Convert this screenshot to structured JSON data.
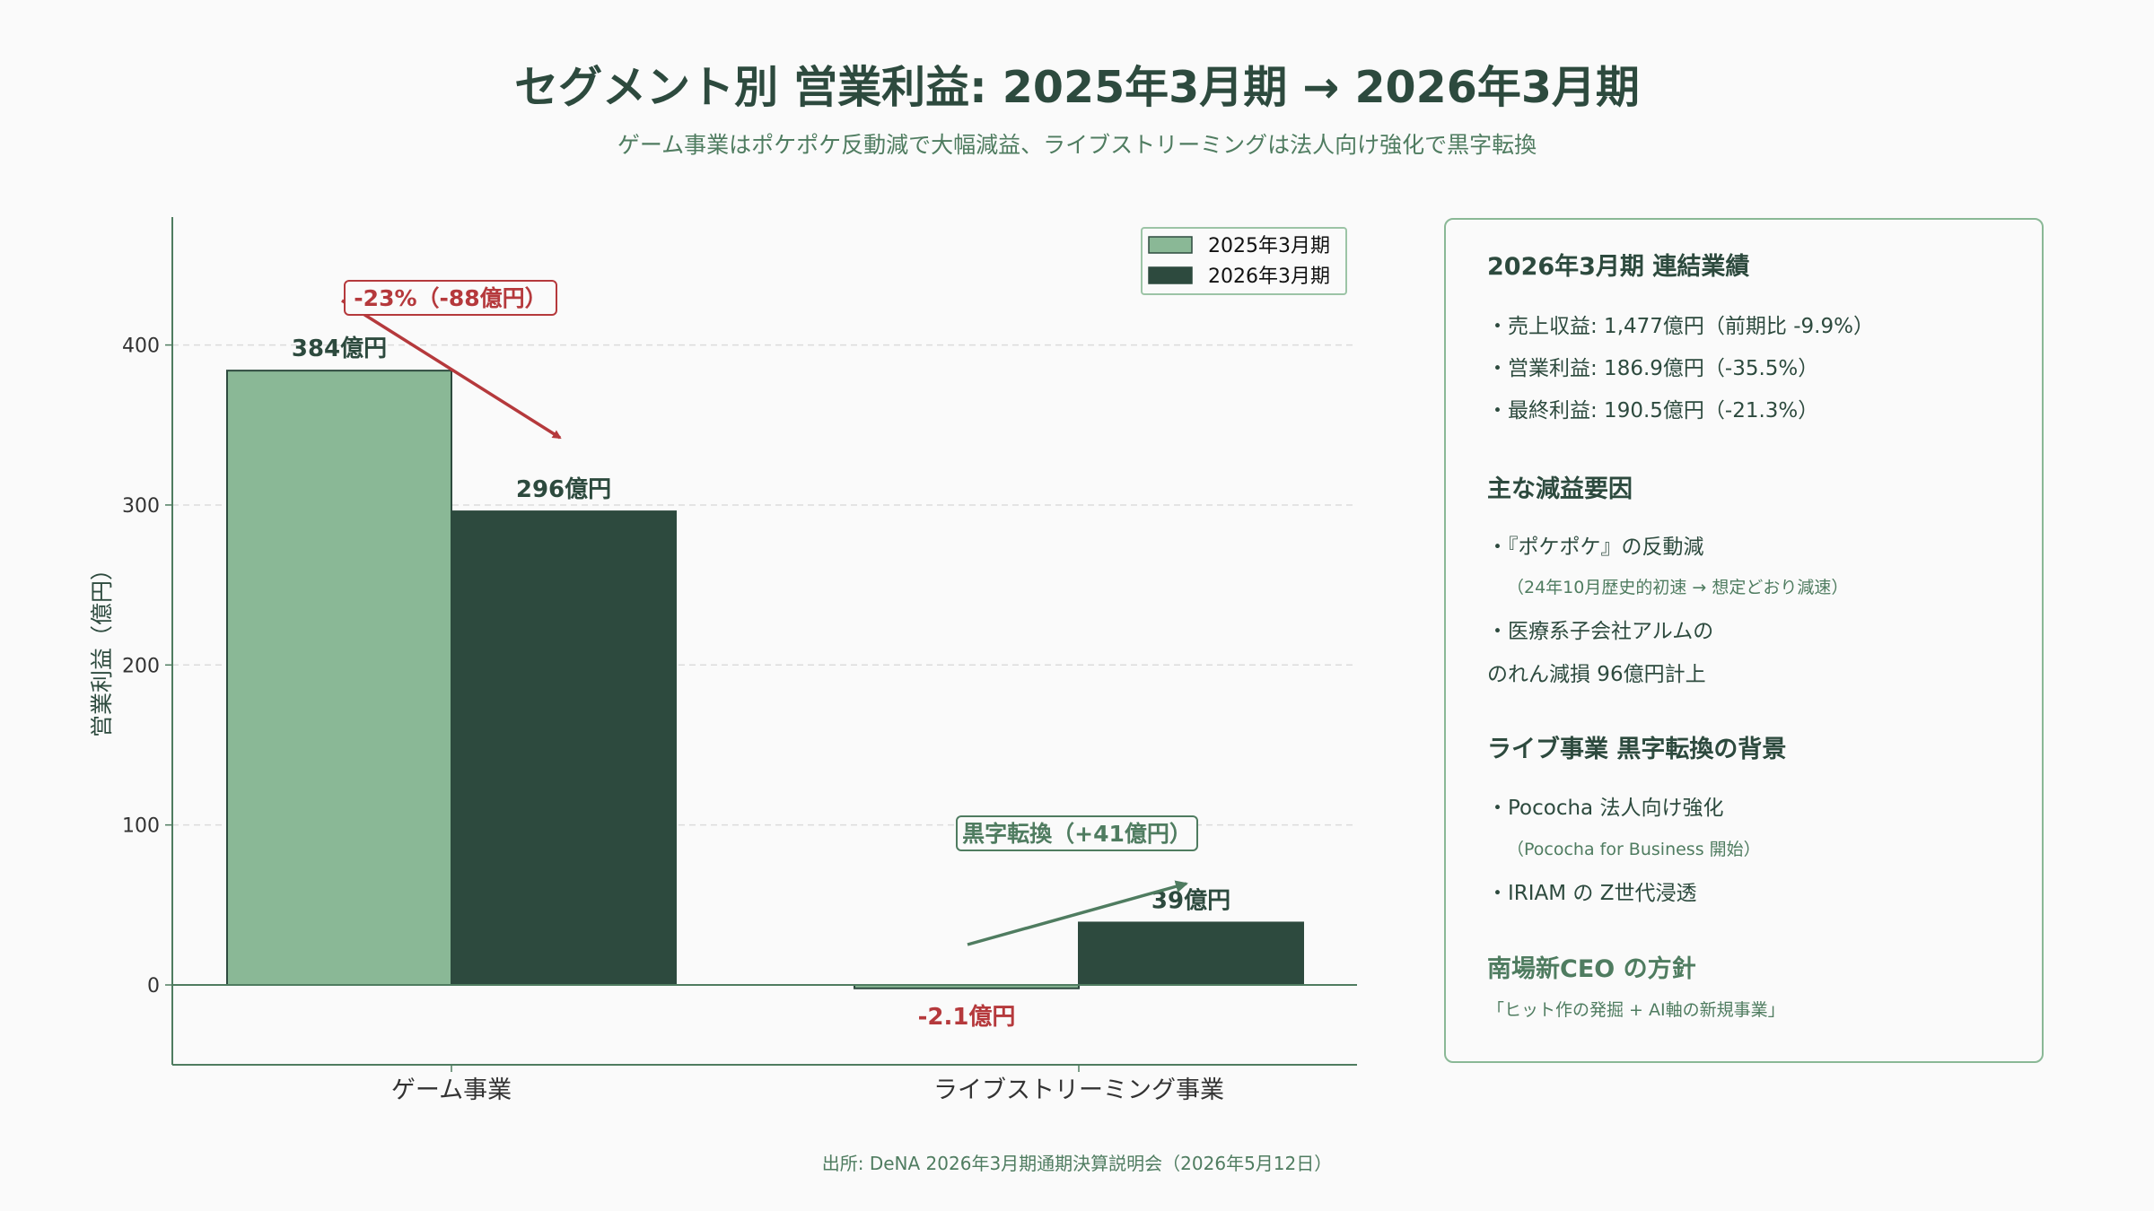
{
  "title": "セグメント別 営業利益: 2025年3月期 → 2026年3月期",
  "subtitle": "ゲーム事業はポケポケ反動減で大幅減益、ライブストリーミングは法人向け強化で黒字転換",
  "source": "出所: DeNA 2026年3月期通期決算説明会（2026年5月12日）",
  "colors": {
    "series_2025": "#8ab896",
    "series_2026": "#2d4a3e",
    "negative": "#b5393c",
    "positive": "#4f7c60"
  },
  "chart_data": {
    "type": "bar",
    "categories": [
      "ゲーム事業",
      "ライブストリーミング事業"
    ],
    "series": [
      {
        "name": "2025年3月期",
        "values": [
          384,
          -2.1
        ]
      },
      {
        "name": "2026年3月期",
        "values": [
          296,
          39
        ]
      }
    ],
    "value_labels": [
      [
        "384億円",
        "-2.1億円"
      ],
      [
        "296億円",
        "39億円"
      ]
    ],
    "ylabel": "営業利益（億円）",
    "ylim": [
      -50,
      480
    ],
    "yticks": [
      0,
      100,
      200,
      300,
      400
    ],
    "grid": true,
    "legend_position": "top-right",
    "annotations": [
      {
        "text": "-23%（-88億円）",
        "tone": "negative",
        "category_index": 0
      },
      {
        "text": "黒字転換（+41億円）",
        "tone": "positive",
        "category_index": 1
      }
    ]
  },
  "panel": {
    "heading1": "2026年3月期 連結業績",
    "results": [
      "・売上収益: 1,477億円（前期比 -9.9%）",
      "・営業利益: 186.9億円（-35.5%）",
      "・最終利益: 190.5億円（-21.3%）"
    ],
    "heading2": "主な減益要因",
    "factor1": "・『ポケポケ』の反動減",
    "factor1_note": "（24年10月歴史的初速 → 想定どおり減速）",
    "factor2_line1": "・医療系子会社アルムの",
    "factor2_line2": "のれん減損 96億円計上",
    "heading3": "ライブ事業 黒字転換の背景",
    "live1": "・Pococha 法人向け強化",
    "live1_note": "（Pococha for Business 開始）",
    "live2": "・IRIAM の Z世代浸透",
    "heading4": "南場新CEO の方針",
    "policy": "「ヒット作の発掘 + AI軸の新規事業」"
  }
}
